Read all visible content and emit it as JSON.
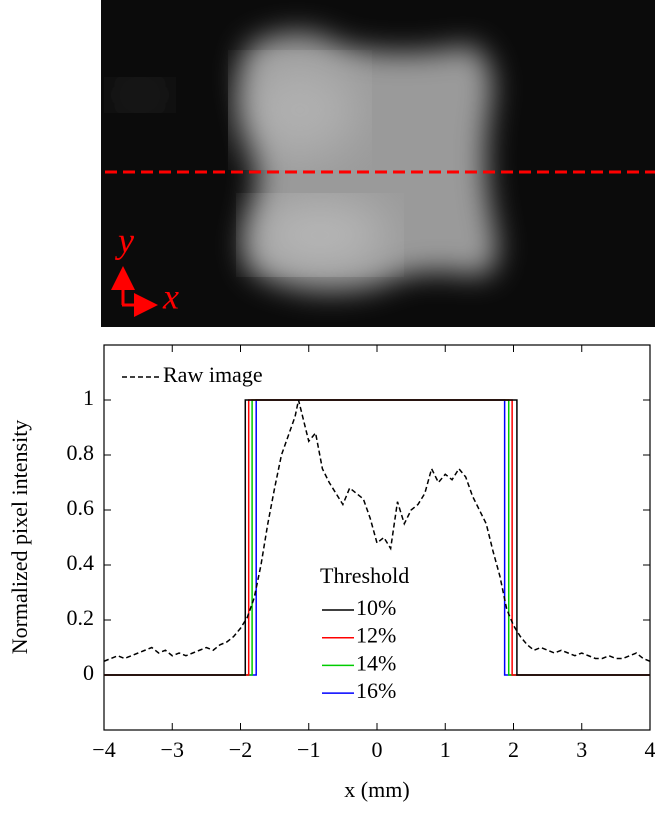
{
  "image": {
    "axis_labels": [
      "y",
      "x"
    ]
  },
  "chart_data": {
    "type": "line",
    "xlabel": "x (mm)",
    "ylabel": "Normalized pixel intensity",
    "xlim": [
      -4,
      4
    ],
    "ylim": [
      -0.2,
      1.2
    ],
    "xticks": [
      {
        "value": -4,
        "label": "−4"
      },
      {
        "value": -3,
        "label": "−3"
      },
      {
        "value": -2,
        "label": "−2"
      },
      {
        "value": -1,
        "label": "−1"
      },
      0,
      1,
      2,
      3,
      4
    ],
    "yticks": [
      0,
      0.2,
      0.4,
      0.6,
      0.8,
      1
    ],
    "legend_title": "Threshold",
    "series": [
      {
        "name": "Raw image",
        "color": "#000000",
        "dashed": true,
        "x": [
          -4,
          -3.9,
          -3.8,
          -3.7,
          -3.6,
          -3.5,
          -3.4,
          -3.3,
          -3.2,
          -3.1,
          -3,
          -2.9,
          -2.8,
          -2.7,
          -2.6,
          -2.5,
          -2.4,
          -2.3,
          -2.2,
          -2.1,
          -2,
          -1.9,
          -1.8,
          -1.7,
          -1.6,
          -1.5,
          -1.4,
          -1.3,
          -1.2,
          -1.15,
          -1.1,
          -1,
          -0.9,
          -0.8,
          -0.7,
          -0.6,
          -0.5,
          -0.4,
          -0.3,
          -0.2,
          -0.1,
          0,
          0.1,
          0.2,
          0.3,
          0.4,
          0.5,
          0.6,
          0.7,
          0.8,
          0.9,
          1,
          1.1,
          1.2,
          1.3,
          1.4,
          1.5,
          1.6,
          1.7,
          1.8,
          1.9,
          2,
          2.1,
          2.2,
          2.3,
          2.4,
          2.5,
          2.6,
          2.7,
          2.8,
          2.9,
          3,
          3.1,
          3.2,
          3.3,
          3.4,
          3.5,
          3.6,
          3.7,
          3.8,
          3.9,
          4
        ],
        "values": [
          0.05,
          0.06,
          0.07,
          0.06,
          0.07,
          0.08,
          0.09,
          0.1,
          0.08,
          0.09,
          0.07,
          0.08,
          0.07,
          0.08,
          0.09,
          0.1,
          0.09,
          0.11,
          0.12,
          0.14,
          0.17,
          0.21,
          0.28,
          0.4,
          0.55,
          0.68,
          0.8,
          0.87,
          0.94,
          1,
          0.95,
          0.85,
          0.88,
          0.75,
          0.7,
          0.66,
          0.62,
          0.68,
          0.66,
          0.64,
          0.57,
          0.48,
          0.5,
          0.46,
          0.63,
          0.55,
          0.6,
          0.62,
          0.66,
          0.75,
          0.7,
          0.73,
          0.71,
          0.75,
          0.72,
          0.65,
          0.6,
          0.55,
          0.45,
          0.36,
          0.24,
          0.18,
          0.14,
          0.11,
          0.09,
          0.1,
          0.09,
          0.08,
          0.09,
          0.08,
          0.07,
          0.08,
          0.07,
          0.06,
          0.06,
          0.07,
          0.06,
          0.06,
          0.07,
          0.08,
          0.06,
          0.05
        ]
      },
      {
        "name": "10%",
        "color": "#000000",
        "x": [
          -4,
          -1.93,
          -1.93,
          2.05,
          2.05,
          4
        ],
        "values": [
          0,
          0,
          1,
          1,
          0,
          0
        ]
      },
      {
        "name": "12%",
        "color": "#ff0000",
        "x": [
          -4,
          -1.88,
          -1.88,
          1.98,
          1.98,
          4
        ],
        "values": [
          0,
          0,
          1,
          1,
          0,
          0
        ]
      },
      {
        "name": "14%",
        "color": "#00cc00",
        "x": [
          -4,
          -1.83,
          -1.83,
          1.93,
          1.93,
          4
        ],
        "values": [
          0,
          0,
          1,
          1,
          0,
          0
        ]
      },
      {
        "name": "16%",
        "color": "#0000ff",
        "x": [
          -4,
          -1.77,
          -1.77,
          1.87,
          1.87,
          4
        ],
        "values": [
          0,
          0,
          1,
          1,
          0,
          0
        ]
      }
    ]
  }
}
